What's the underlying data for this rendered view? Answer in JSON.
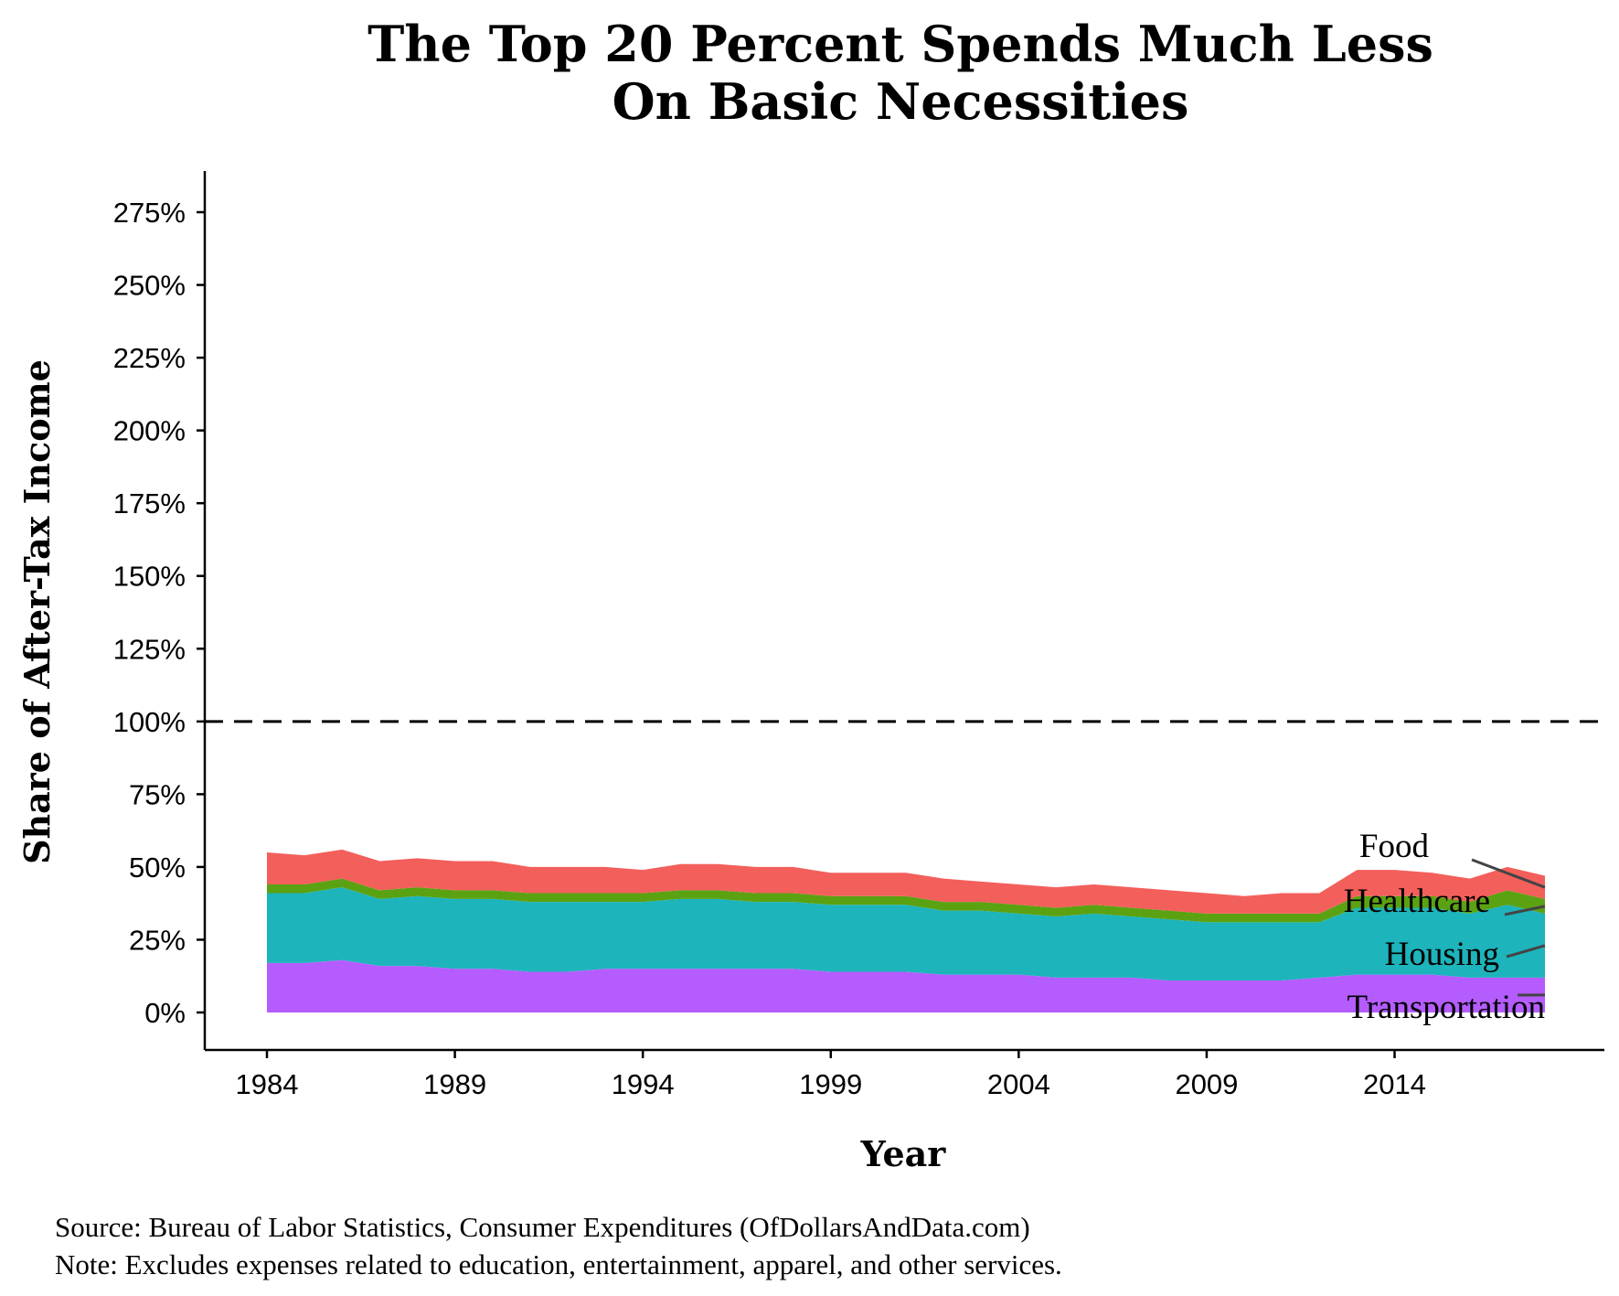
{
  "chart_data": {
    "type": "area",
    "stacked": true,
    "title_line1": "The Top 20 Percent Spends Much Less",
    "title_line2": "On Basic Necessities",
    "xlabel": "Year",
    "ylabel": "Share of After-Tax Income",
    "xlim": [
      1984,
      2018
    ],
    "ylim": [
      0,
      2.75
    ],
    "x_ticks": [
      1984,
      1989,
      1994,
      1999,
      2004,
      2009,
      2014
    ],
    "y_ticks": [
      {
        "value": 0,
        "label": "0%"
      },
      {
        "value": 0.25,
        "label": "25%"
      },
      {
        "value": 0.5,
        "label": "50%"
      },
      {
        "value": 0.75,
        "label": "75%"
      },
      {
        "value": 1.0,
        "label": "100%"
      },
      {
        "value": 1.25,
        "label": "125%"
      },
      {
        "value": 1.5,
        "label": "150%"
      },
      {
        "value": 1.75,
        "label": "175%"
      },
      {
        "value": 2.0,
        "label": "200%"
      },
      {
        "value": 2.25,
        "label": "225%"
      },
      {
        "value": 2.5,
        "label": "250%"
      },
      {
        "value": 2.75,
        "label": "275%"
      }
    ],
    "reference_line": {
      "value": 1.0,
      "style": "dashed"
    },
    "grid": false,
    "x": [
      1984,
      1985,
      1986,
      1987,
      1988,
      1989,
      1990,
      1991,
      1992,
      1993,
      1994,
      1995,
      1996,
      1997,
      1998,
      1999,
      2000,
      2001,
      2002,
      2003,
      2004,
      2005,
      2006,
      2007,
      2008,
      2009,
      2010,
      2011,
      2012,
      2013,
      2014,
      2015,
      2016,
      2017,
      2018
    ],
    "series": [
      {
        "name": "Transportation",
        "color": "#b55cff",
        "values": [
          0.17,
          0.17,
          0.18,
          0.16,
          0.16,
          0.15,
          0.15,
          0.14,
          0.14,
          0.15,
          0.15,
          0.15,
          0.15,
          0.15,
          0.15,
          0.14,
          0.14,
          0.14,
          0.13,
          0.13,
          0.13,
          0.12,
          0.12,
          0.12,
          0.11,
          0.11,
          0.11,
          0.11,
          0.12,
          0.13,
          0.13,
          0.13,
          0.12,
          0.12,
          0.12
        ]
      },
      {
        "name": "Housing",
        "color": "#1db4bb",
        "values": [
          0.24,
          0.24,
          0.25,
          0.23,
          0.24,
          0.24,
          0.24,
          0.24,
          0.24,
          0.23,
          0.23,
          0.24,
          0.24,
          0.23,
          0.23,
          0.23,
          0.23,
          0.23,
          0.22,
          0.22,
          0.21,
          0.21,
          0.22,
          0.21,
          0.21,
          0.2,
          0.2,
          0.2,
          0.19,
          0.23,
          0.23,
          0.23,
          0.22,
          0.25,
          0.22
        ]
      },
      {
        "name": "Healthcare",
        "color": "#5ba212",
        "values": [
          0.03,
          0.03,
          0.03,
          0.03,
          0.03,
          0.03,
          0.03,
          0.03,
          0.03,
          0.03,
          0.03,
          0.03,
          0.03,
          0.03,
          0.03,
          0.03,
          0.03,
          0.03,
          0.03,
          0.03,
          0.03,
          0.03,
          0.03,
          0.03,
          0.03,
          0.03,
          0.03,
          0.03,
          0.03,
          0.04,
          0.04,
          0.04,
          0.04,
          0.05,
          0.05
        ]
      },
      {
        "name": "Food",
        "color": "#f35f5b",
        "values": [
          0.11,
          0.1,
          0.1,
          0.1,
          0.1,
          0.1,
          0.1,
          0.09,
          0.09,
          0.09,
          0.08,
          0.09,
          0.09,
          0.09,
          0.09,
          0.08,
          0.08,
          0.08,
          0.08,
          0.07,
          0.07,
          0.07,
          0.07,
          0.07,
          0.07,
          0.07,
          0.06,
          0.07,
          0.07,
          0.09,
          0.09,
          0.08,
          0.08,
          0.08,
          0.08
        ]
      }
    ],
    "labels_order": [
      "Food",
      "Healthcare",
      "Housing",
      "Transportation"
    ]
  },
  "caption": {
    "source": "Source:  Bureau of Labor Statistics, Consumer Expenditures (OfDollarsAndData.com)",
    "note": "Note:  Excludes expenses related to education, entertainment, apparel, and other services."
  }
}
